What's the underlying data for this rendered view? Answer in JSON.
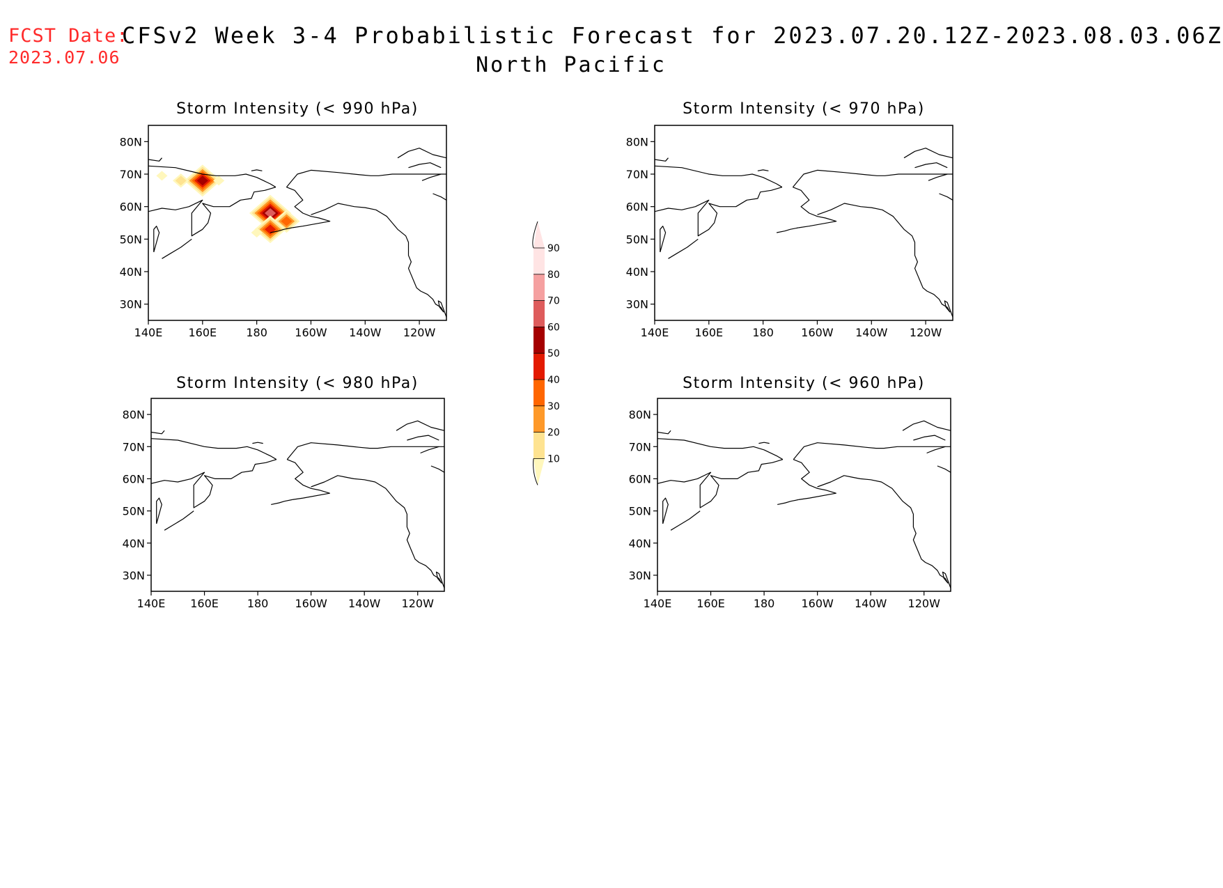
{
  "header": {
    "fcst_label": "FCST Date:",
    "fcst_date": "2023.07.06",
    "title": "CFSv2 Week 3-4 Probabilistic Forecast for 2023.07.20.12Z-2023.08.03.06Z",
    "region": "North Pacific"
  },
  "panels": [
    {
      "title": "Storm Intensity (< 990 hPa)",
      "has_data": true
    },
    {
      "title": "Storm Intensity (< 970 hPa)",
      "has_data": false
    },
    {
      "title": "Storm Intensity (< 980 hPa)",
      "has_data": false
    },
    {
      "title": "Storm Intensity (< 960 hPa)",
      "has_data": false
    }
  ],
  "axes": {
    "lat_labels": [
      "80N",
      "70N",
      "60N",
      "50N",
      "40N",
      "30N"
    ],
    "lat_values": [
      80,
      70,
      60,
      50,
      40,
      30
    ],
    "lat_range": [
      25,
      85
    ],
    "lon_labels": [
      "140E",
      "160E",
      "180",
      "160W",
      "140W",
      "120W"
    ],
    "lon_values": [
      140,
      160,
      180,
      200,
      220,
      240
    ],
    "lon_range": [
      140,
      250
    ]
  },
  "colorbar": {
    "levels": [
      10,
      20,
      30,
      40,
      50,
      60,
      70,
      80,
      90
    ],
    "colors": [
      "#fff7bc",
      "#fee391",
      "#fe9929",
      "#ff6600",
      "#e31a00",
      "#a50000",
      "#de5c5c",
      "#f5a0a0",
      "#ffe4e4"
    ]
  },
  "hotspots": [
    {
      "lon": 160,
      "lat": 68,
      "peak": 60
    },
    {
      "lon": 152,
      "lat": 68,
      "peak": 20
    },
    {
      "lon": 145,
      "lat": 69.5,
      "peak": 10
    },
    {
      "lon": 166,
      "lat": 68,
      "peak": 10
    },
    {
      "lon": 185,
      "lat": 58,
      "peak": 70
    },
    {
      "lon": 191,
      "lat": 55.5,
      "peak": 40
    },
    {
      "lon": 185,
      "lat": 53,
      "peak": 50
    },
    {
      "lon": 180,
      "lat": 52,
      "peak": 10
    }
  ]
}
